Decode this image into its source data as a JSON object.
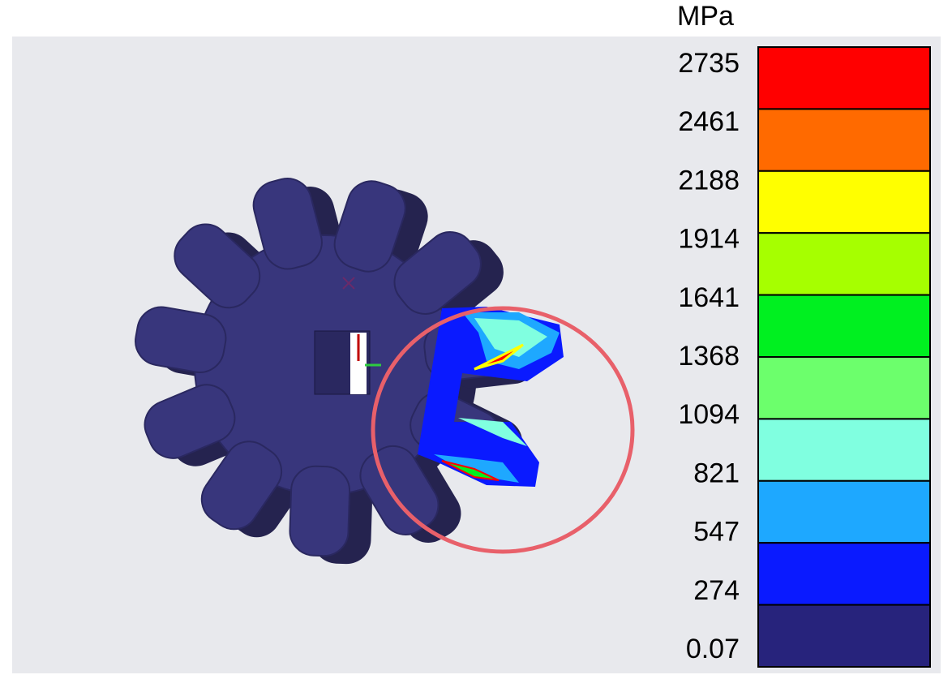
{
  "legend": {
    "unit": "MPa",
    "labels": [
      "2735",
      "2461",
      "2188",
      "1914",
      "1641",
      "1368",
      "1094",
      "821",
      "547",
      "274",
      "0.07"
    ],
    "colors": [
      "#ff0000",
      "#ff6a00",
      "#ffff00",
      "#a6ff00",
      "#00f020",
      "#6cff6c",
      "#80ffe0",
      "#1ea8ff",
      "#0a1aff",
      "#27237c"
    ]
  }
}
